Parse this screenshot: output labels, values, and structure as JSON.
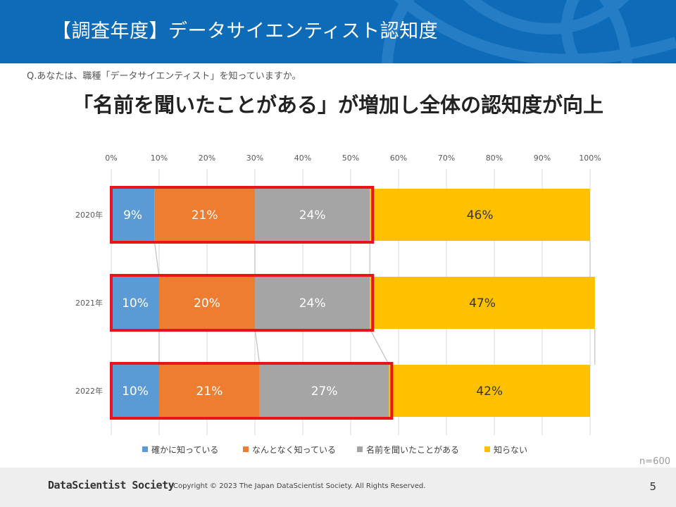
{
  "slide": {
    "title": "【調査年度】データサイエンティスト認知度",
    "question": "Q.あなたは、職種「データサイエンティスト」を知っていますか。",
    "headline": "「名前を聞いたことがある」が増加し全体の認知度が向上",
    "sample_size": "n=600",
    "page_number": "5"
  },
  "footer": {
    "logo": "DataScientist Society",
    "copyright": "Copyright © 2023  The Japan DataScientist Society. All Rights Reserved."
  },
  "colors": {
    "header_bg": "#0e6bb8",
    "highlight_box": "#e8141c",
    "series": [
      "#5b9bd5",
      "#ed7d31",
      "#a5a5a5",
      "#ffc000"
    ]
  },
  "chart_data": {
    "type": "bar",
    "orientation": "horizontal",
    "stacked": "100%",
    "categories": [
      "2020年",
      "2021年",
      "2022年"
    ],
    "series": [
      {
        "name": "確かに知っている",
        "values": [
          9,
          10,
          10
        ],
        "labels": [
          "9%",
          "10%",
          "10%"
        ]
      },
      {
        "name": "なんとなく知っている",
        "values": [
          21,
          20,
          21
        ],
        "labels": [
          "21%",
          "20%",
          "21%"
        ]
      },
      {
        "name": "名前を聞いたことがある",
        "values": [
          24,
          24,
          27
        ],
        "labels": [
          "24%",
          "24%",
          "27%"
        ]
      },
      {
        "name": "知らない",
        "values": [
          46,
          47,
          42
        ],
        "labels": [
          "46%",
          "47%",
          "42%"
        ]
      }
    ],
    "x_ticks": [
      "0%",
      "10%",
      "20%",
      "30%",
      "40%",
      "50%",
      "60%",
      "70%",
      "80%",
      "90%",
      "100%"
    ],
    "xlim": [
      0,
      100
    ],
    "axis_position": "top",
    "grid": true,
    "legend_position": "bottom",
    "series_lines": true,
    "highlight": "first three segments of each bar outlined in red"
  }
}
